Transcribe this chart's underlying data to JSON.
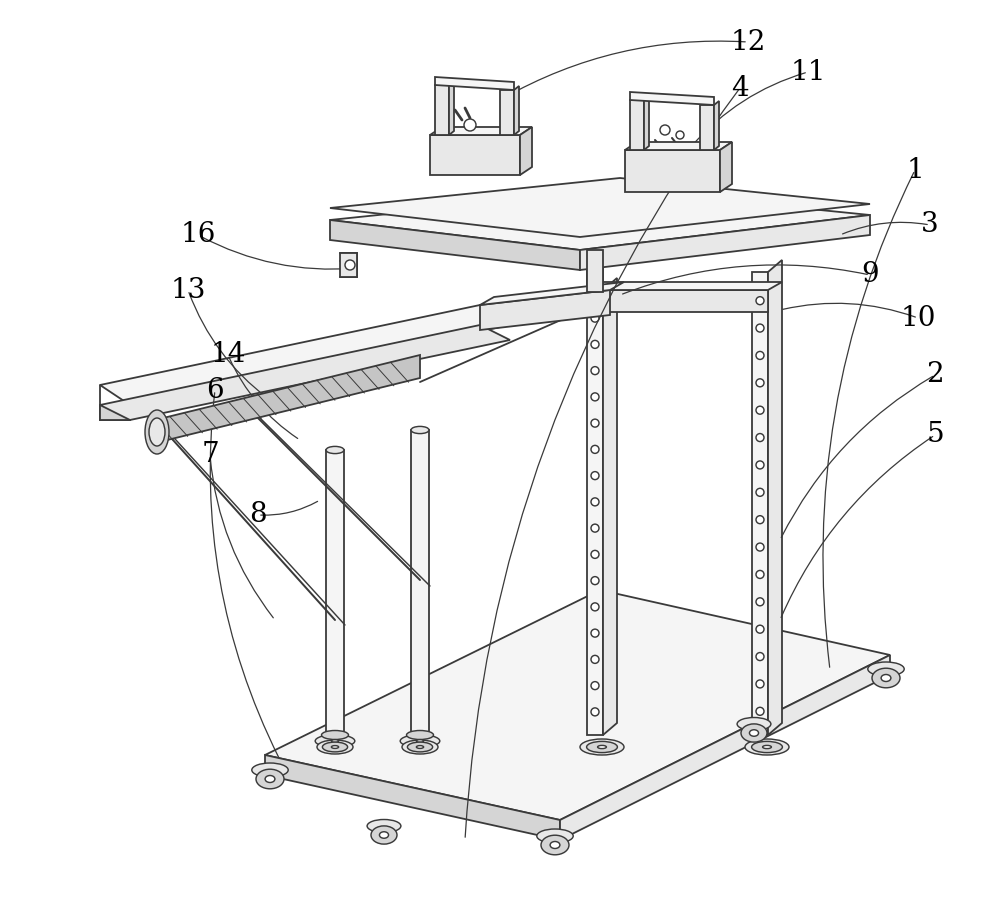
{
  "bg_color": "#ffffff",
  "line_color": "#3a3a3a",
  "line_width": 1.3,
  "fig_width": 10.0,
  "fig_height": 9.02,
  "label_fontsize": 20,
  "leader_color": "#3a3a3a",
  "face_light": "#f5f5f5",
  "face_mid": "#e8e8e8",
  "face_dark": "#d5d5d5",
  "face_darker": "#c8c8c8"
}
